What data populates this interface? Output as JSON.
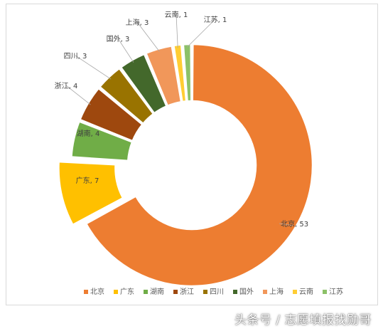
{
  "chart_data": {
    "type": "pie",
    "variant": "donut",
    "title": "",
    "categories": [
      "北京",
      "广东",
      "湖南",
      "浙江",
      "四川",
      "国外",
      "上海",
      "云南",
      "江苏"
    ],
    "values": [
      53,
      7,
      4,
      4,
      3,
      3,
      3,
      1,
      1
    ],
    "data_labels": [
      "北京, 53",
      "广东, 7",
      "湖南, 4",
      "浙江, 4",
      "四川, 3",
      "国外, 3",
      "上海, 3",
      "云南, 1",
      "江苏, 1"
    ],
    "colors": [
      "#ED7D31",
      "#FFC000",
      "#70AD47",
      "#9E480E",
      "#997300",
      "#43682B",
      "#F1975A",
      "#FFCD33",
      "#8CC168"
    ],
    "legend_position": "bottom",
    "exploded_slices": [
      "广东"
    ]
  },
  "watermark": {
    "text": "头条号 / 志愿填报找勋哥"
  }
}
